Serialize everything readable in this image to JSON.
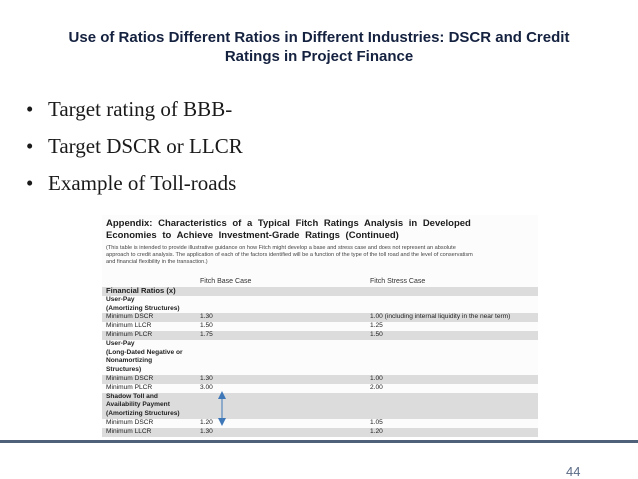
{
  "slide": {
    "title_line1": "Use of Ratios Different Ratios in Different Industries: DSCR and Credit",
    "title_line2": "Ratings in Project Finance",
    "bullets": [
      "Target rating of BBB-",
      "Target DSCR or LLCR",
      "Example of Toll-roads"
    ],
    "bullet_glyph": "•",
    "page_number": "44"
  },
  "appendix": {
    "heading_line1": "Appendix: Characteristics of a Typical Fitch Ratings Analysis in Developed",
    "heading_line2": "Economies to Achieve Investment-Grade Ratings (Continued)",
    "note_line1": "(This table is intended to provide illustrative guidance on how Fitch might develop a base and stress case and does not represent an absolute",
    "note_line2": "approach to credit analysis. The application of each of the factors identified will be a function of the type of the toll road and the level of conservatism",
    "note_line3": "and financial flexibility in the transaction.)",
    "col_base": "Fitch Base Case",
    "col_stress": "Fitch Stress Case",
    "rows": [
      {
        "label": "Financial Ratios (x)",
        "base": "",
        "stress": ""
      },
      {
        "label": "User-Pay",
        "base": "",
        "stress": ""
      },
      {
        "label": "(Amortizing Structures)",
        "base": "",
        "stress": ""
      },
      {
        "label": "Minimum DSCR",
        "base": "1.30",
        "stress": "1.00 (including internal liquidity in the near term)"
      },
      {
        "label": "Minimum LLCR",
        "base": "1.50",
        "stress": "1.25"
      },
      {
        "label": "Minimum PLCR",
        "base": "1.75",
        "stress": "1.50"
      },
      {
        "label": "User-Pay",
        "base": "",
        "stress": ""
      },
      {
        "label": "(Long-Dated Negative or",
        "base": "",
        "stress": ""
      },
      {
        "label": "Nonamortizing",
        "base": "",
        "stress": ""
      },
      {
        "label": "Structures)",
        "base": "",
        "stress": ""
      },
      {
        "label": "Minimum DSCR",
        "base": "1.30",
        "stress": "1.00"
      },
      {
        "label": "Minimum PLCR",
        "base": "3.00",
        "stress": "2.00"
      },
      {
        "label": "Shadow Toll and",
        "base": "",
        "stress": ""
      },
      {
        "label": "Availability Payment",
        "base": "",
        "stress": ""
      },
      {
        "label": "(Amortizing Structures)",
        "base": "",
        "stress": ""
      },
      {
        "label": "Minimum DSCR",
        "base": "1.20",
        "stress": "1.05"
      },
      {
        "label": "Minimum LLCR",
        "base": "1.30",
        "stress": "1.20"
      }
    ]
  },
  "colors": {
    "title": "#14213f",
    "bottom_bar": "#4f6079",
    "page_number": "#5a6b86",
    "row_shade": "#dcdcdc",
    "arrow": "#3f78b8"
  }
}
